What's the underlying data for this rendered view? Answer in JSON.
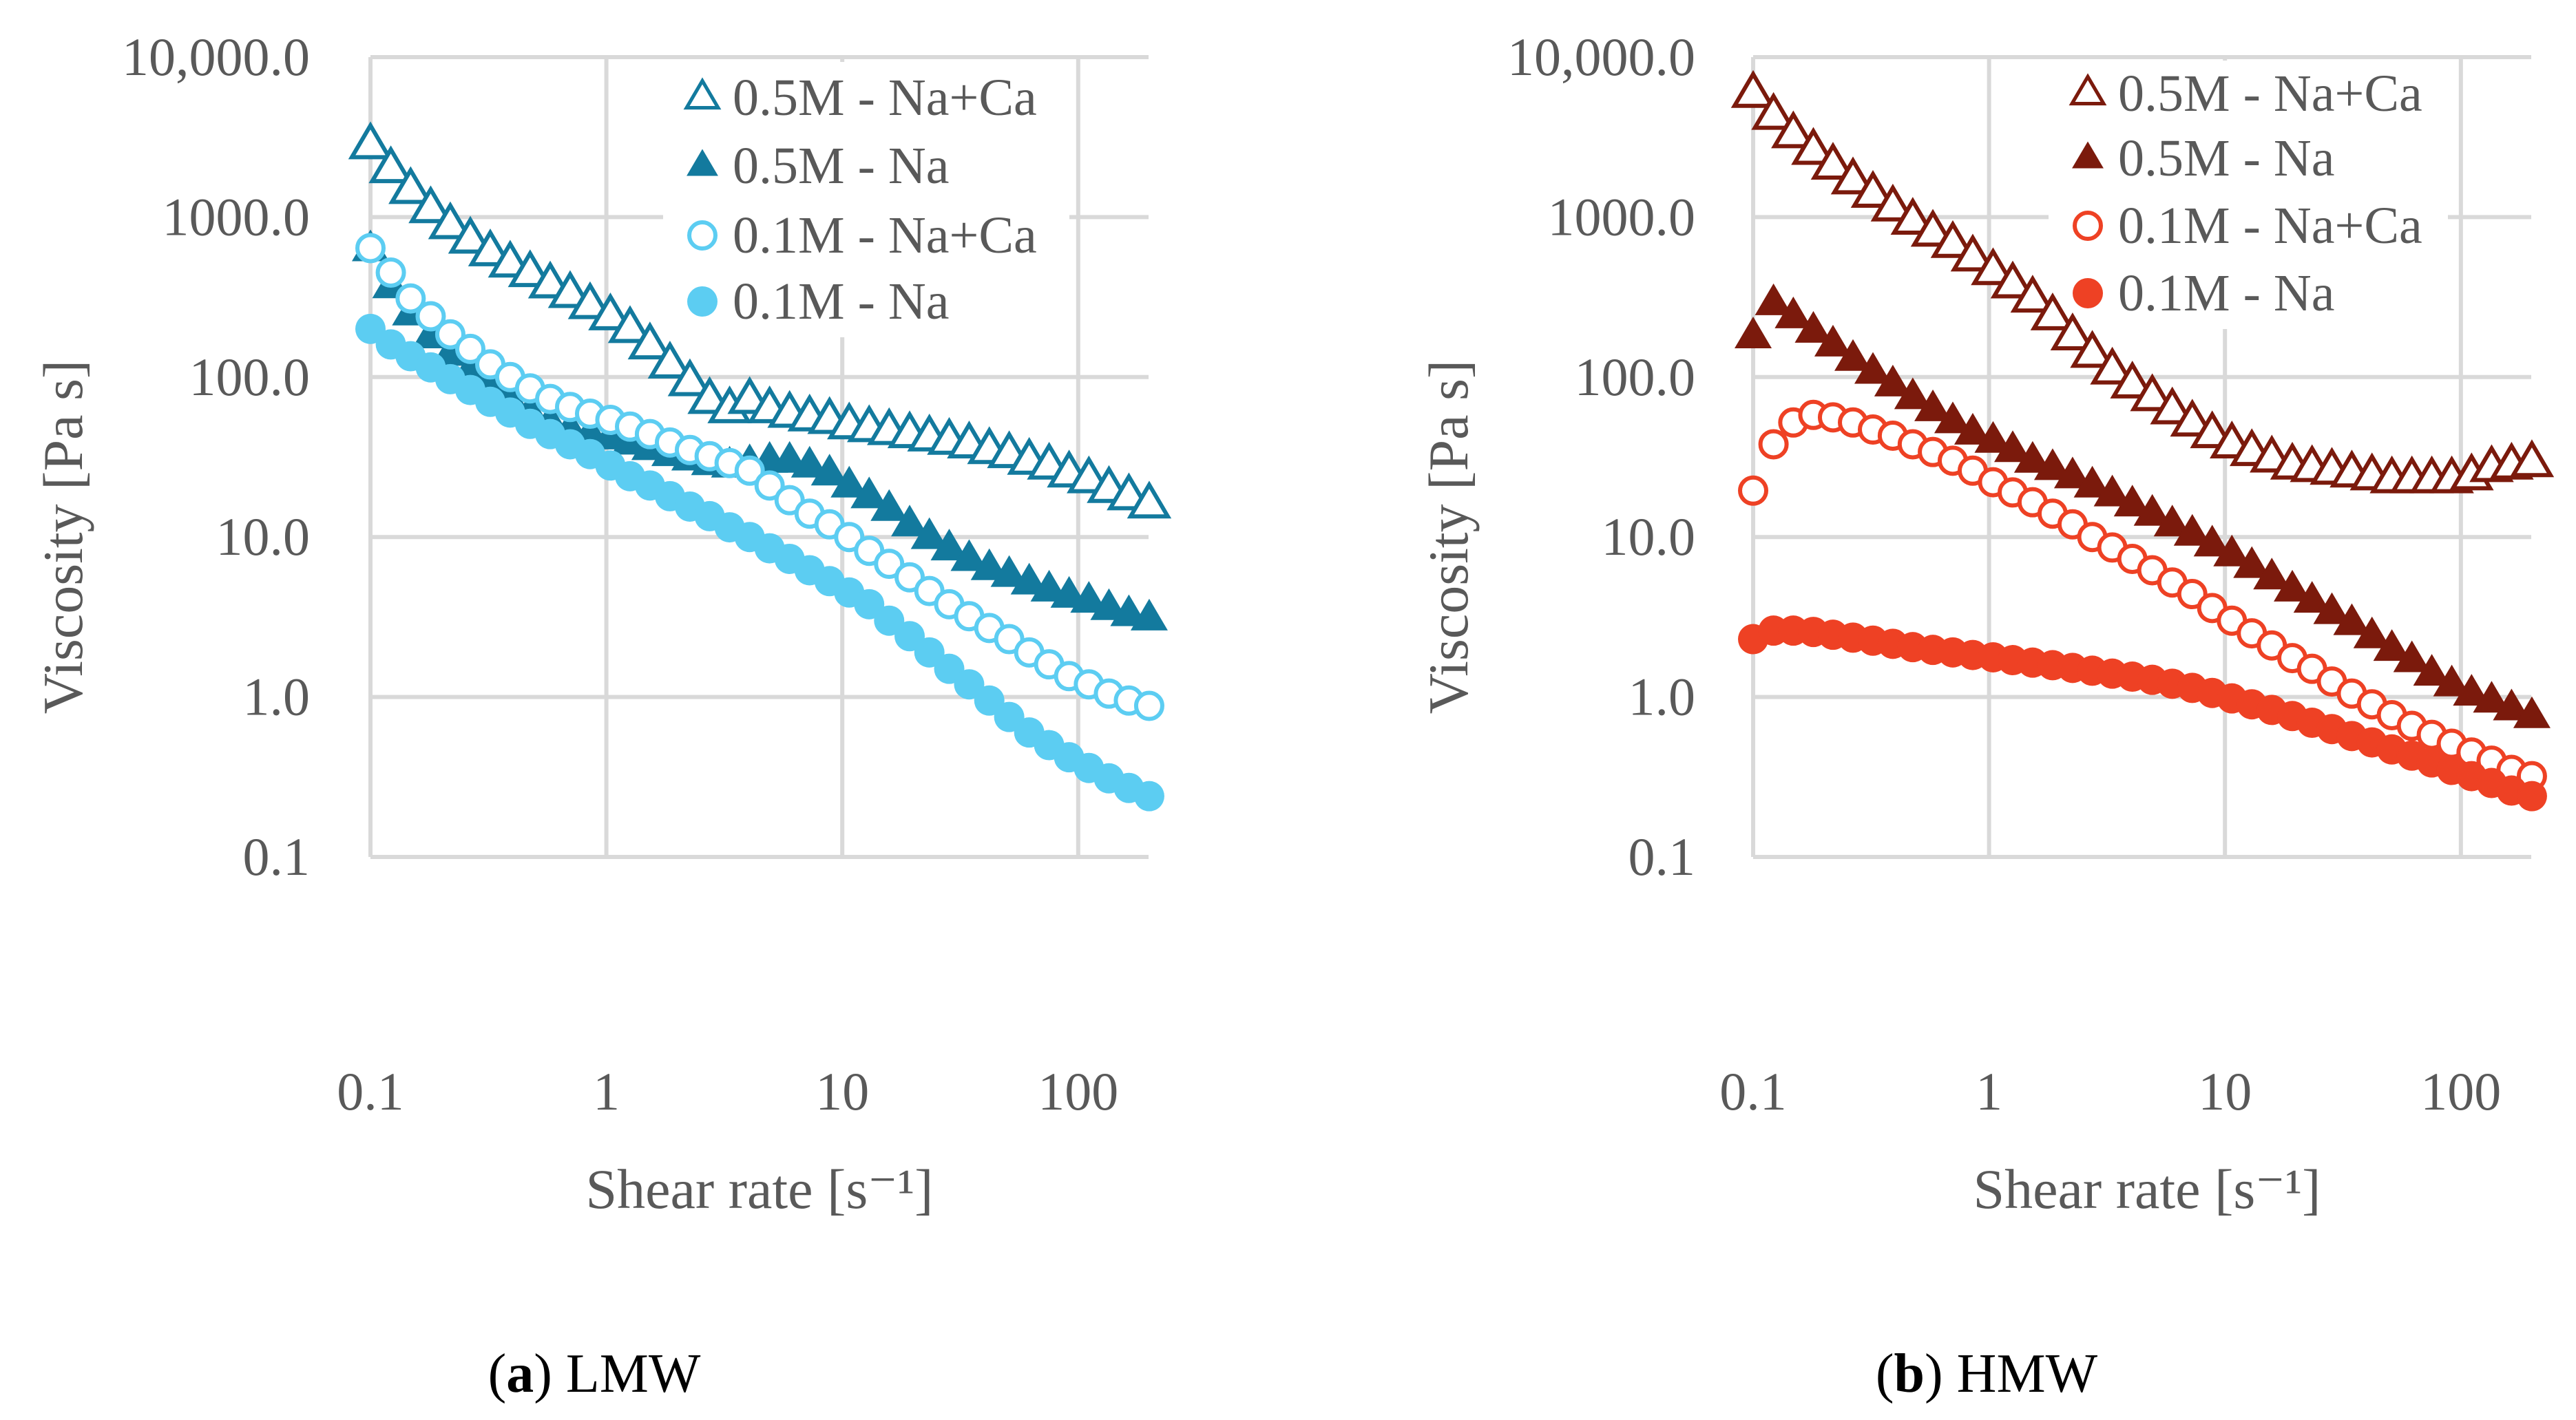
{
  "figure": {
    "panels": [
      {
        "caption": {
          "open": "(",
          "label": "a",
          "rest": ") LMW"
        },
        "ylabel": "Viscosity [Pa s]",
        "xlabel": "Shear rate [s⁻¹]",
        "xtick_labels": [
          "0.1",
          "1",
          "10",
          "100"
        ],
        "ytick_labels": [
          "10,000.0",
          "1000.0",
          "100.0",
          "10.0",
          "1.0",
          "0.1"
        ]
      },
      {
        "caption": {
          "open": "(",
          "label": "b",
          "rest": ") HMW"
        },
        "ylabel": "Viscosity [Pa s]",
        "xlabel": "Shear rate [s⁻¹]",
        "xtick_labels": [
          "0.1",
          "1",
          "10",
          "100"
        ],
        "ytick_labels": [
          "10,000.0",
          "1000.0",
          "100.0",
          "10.0",
          "1.0",
          "0.1"
        ]
      }
    ]
  },
  "chart_data": [
    {
      "type": "scatter",
      "title": "(a) LMW",
      "xlabel": "Shear rate [s⁻¹]",
      "ylabel": "Viscosity [Pa s]",
      "xscale": "log",
      "yscale": "log",
      "xlim": [
        0.1,
        200
      ],
      "ylim": [
        0.1,
        10000
      ],
      "grid": true,
      "legend_position": "top-right",
      "x": [
        0.1,
        0.122,
        0.148,
        0.18,
        0.218,
        0.265,
        0.322,
        0.391,
        0.475,
        0.578,
        0.702,
        0.853,
        1.04,
        1.26,
        1.53,
        1.86,
        2.26,
        2.74,
        3.33,
        4.05,
        4.92,
        5.98,
        7.27,
        8.83,
        10.7,
        13.0,
        15.8,
        19.3,
        23.4,
        28.4,
        34.5,
        42.0,
        51.0,
        62.0,
        75.3,
        91.5,
        111,
        135,
        164,
        200
      ],
      "series": [
        {
          "name": "0.5M - Na+Ca",
          "marker": "triangle-open",
          "color": "#137a9e",
          "values": [
            2818,
            1995,
            1479,
            1122,
            891,
            724,
            603,
            513,
            447,
            380,
            331,
            282,
            240,
            200,
            158,
            120,
            93,
            72,
            63,
            72,
            63,
            59,
            56,
            54,
            50,
            48,
            46,
            44,
            42,
            40,
            38,
            35,
            33,
            30,
            28,
            25,
            23,
            20,
            18,
            16
          ]
        },
        {
          "name": "0.5M - Na",
          "marker": "triangle-filled",
          "color": "#137a9e",
          "values": [
            630,
            370,
            250,
            180,
            140,
            110,
            88,
            72,
            60,
            52,
            47,
            44,
            42,
            39,
            36,
            33,
            31,
            29,
            28,
            29,
            30,
            30,
            28,
            25,
            21,
            18,
            15,
            12,
            10,
            8.5,
            7.3,
            6.4,
            5.8,
            5.2,
            4.7,
            4.3,
            4.0,
            3.6,
            3.3,
            3.1
          ]
        },
        {
          "name": "0.1M - Na+Ca",
          "marker": "circle-open",
          "color": "#5ccdf2",
          "values": [
            640,
            450,
            310,
            240,
            185,
            150,
            120,
            100,
            85,
            73,
            65,
            59,
            54,
            49,
            44,
            39,
            35,
            32,
            29,
            26,
            21,
            17,
            14,
            12,
            10,
            8.2,
            6.8,
            5.6,
            4.6,
            3.8,
            3.2,
            2.7,
            2.3,
            1.9,
            1.6,
            1.35,
            1.2,
            1.05,
            0.95,
            0.88
          ]
        },
        {
          "name": "0.1M - Na",
          "marker": "circle-filled",
          "color": "#5ccdf2",
          "values": [
            200,
            160,
            135,
            115,
            97,
            83,
            70,
            60,
            51,
            44,
            38,
            33,
            28,
            24,
            21,
            18,
            15.5,
            13.5,
            11.5,
            10,
            8.5,
            7.3,
            6.2,
            5.3,
            4.5,
            3.8,
            3.0,
            2.4,
            1.9,
            1.5,
            1.2,
            0.95,
            0.75,
            0.6,
            0.5,
            0.42,
            0.36,
            0.31,
            0.27,
            0.24
          ]
        }
      ]
    },
    {
      "type": "scatter",
      "title": "(b) HMW",
      "xlabel": "Shear rate [s⁻¹]",
      "ylabel": "Viscosity [Pa s]",
      "xscale": "log",
      "yscale": "log",
      "xlim": [
        0.1,
        200
      ],
      "ylim": [
        0.1,
        10000
      ],
      "grid": true,
      "legend_position": "top-right",
      "x": [
        0.1,
        0.122,
        0.148,
        0.18,
        0.218,
        0.265,
        0.322,
        0.391,
        0.475,
        0.578,
        0.702,
        0.853,
        1.04,
        1.26,
        1.53,
        1.86,
        2.26,
        2.74,
        3.33,
        4.05,
        4.92,
        5.98,
        7.27,
        8.83,
        10.7,
        13.0,
        15.8,
        19.3,
        23.4,
        28.4,
        34.5,
        42.0,
        51.0,
        62.0,
        75.3,
        91.5,
        111,
        135,
        164,
        200
      ],
      "series": [
        {
          "name": "0.5M - Na+Ca",
          "marker": "triangle-open",
          "color": "#7b1a0c",
          "values": [
            5900,
            4300,
            3300,
            2600,
            2100,
            1700,
            1400,
            1150,
            950,
            800,
            680,
            560,
            460,
            380,
            310,
            240,
            180,
            140,
            110,
            90,
            75,
            62,
            52,
            44,
            38,
            34,
            31,
            28,
            27,
            26,
            25,
            24,
            23,
            23,
            23,
            23,
            24,
            27,
            28,
            29
          ]
        },
        {
          "name": "0.5M - Na",
          "marker": "triangle-filled",
          "color": "#7b1a0c",
          "values": [
            180,
            290,
            240,
            195,
            160,
            130,
            108,
            90,
            75,
            63,
            53,
            45,
            40,
            35,
            30,
            27,
            24,
            21,
            18.5,
            16,
            14,
            12,
            10.5,
            9,
            7.8,
            6.6,
            5.6,
            4.7,
            4.0,
            3.4,
            2.9,
            2.4,
            2.0,
            1.7,
            1.4,
            1.2,
            1.05,
            0.95,
            0.85,
            0.76
          ]
        },
        {
          "name": "0.1M - Na+Ca",
          "marker": "circle-open",
          "color": "#ee4124",
          "values": [
            19.5,
            38,
            52,
            58,
            56,
            52,
            47,
            43,
            38,
            34,
            30,
            26,
            22,
            19,
            16.5,
            14,
            12,
            10,
            8.6,
            7.3,
            6.2,
            5.2,
            4.4,
            3.6,
            3.0,
            2.5,
            2.1,
            1.75,
            1.5,
            1.25,
            1.05,
            0.9,
            0.77,
            0.66,
            0.58,
            0.51,
            0.45,
            0.4,
            0.35,
            0.32
          ]
        },
        {
          "name": "0.1M - Na",
          "marker": "circle-filled",
          "color": "#ee4124",
          "values": [
            2.3,
            2.6,
            2.6,
            2.55,
            2.45,
            2.35,
            2.25,
            2.15,
            2.05,
            1.97,
            1.9,
            1.83,
            1.77,
            1.7,
            1.64,
            1.58,
            1.52,
            1.46,
            1.4,
            1.34,
            1.28,
            1.21,
            1.14,
            1.06,
            0.98,
            0.9,
            0.83,
            0.76,
            0.69,
            0.63,
            0.57,
            0.52,
            0.47,
            0.43,
            0.39,
            0.35,
            0.32,
            0.29,
            0.26,
            0.24
          ]
        }
      ]
    }
  ]
}
